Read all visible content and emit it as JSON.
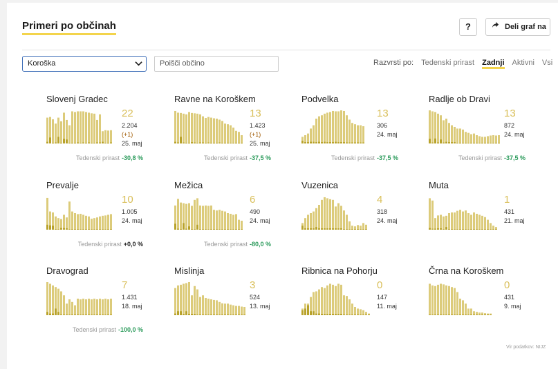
{
  "header": {
    "title": "Primeri po občinah",
    "help_label": "?",
    "share_label": "Deli graf na"
  },
  "filters": {
    "region_selected": "Koroška",
    "search_placeholder": "Poišči občino",
    "sort_label": "Razvrsti po:",
    "sort_options": [
      "Tedenski prirast",
      "Zadnji",
      "Aktivni",
      "Vsi"
    ],
    "sort_active": "Zadnji"
  },
  "growth_label": "Tedenski prirast",
  "colors": {
    "accent": "#f3d44c",
    "bar": "#dccb7a",
    "bar_dark": "#b8a22a",
    "green": "#2a9a5a"
  },
  "municipalities": [
    {
      "name": "Slovenj Gradec",
      "new": "22",
      "total": "2.204",
      "delta": "(+1)",
      "date": "25. maj",
      "growth": "-30,8 %",
      "growth_color": "green",
      "bars": [
        0.78,
        0.8,
        0.73,
        0.6,
        0.78,
        0.67,
        0.93,
        0.71,
        0.55,
        0.97,
        0.95,
        0.97,
        0.97,
        0.97,
        0.95,
        0.93,
        0.91,
        0.9,
        0.71,
        0.88,
        0.37,
        0.4,
        0.39,
        0.4
      ],
      "dark": [
        0.05,
        0.18,
        0.02,
        0.03,
        0.2,
        0.02,
        0.14,
        0.12,
        0.02,
        0.02,
        0.02,
        0.03,
        0.02,
        0.03,
        0.02,
        0.03,
        0.02,
        0.02,
        0.03,
        0.03,
        0.05,
        0.02,
        0.02,
        0.03
      ]
    },
    {
      "name": "Ravne na Koroškem",
      "new": "13",
      "total": "1.423",
      "delta": "(+1)",
      "date": "25. maj",
      "growth": "-37,5 %",
      "growth_color": "green",
      "bars": [
        0.98,
        0.93,
        0.92,
        0.9,
        0.88,
        0.95,
        0.92,
        0.91,
        0.9,
        0.88,
        0.82,
        0.77,
        0.8,
        0.78,
        0.76,
        0.75,
        0.72,
        0.68,
        0.6,
        0.58,
        0.55,
        0.48,
        0.38,
        0.35,
        0.25
      ],
      "dark": [
        0.05,
        0.03,
        0.2,
        0.03,
        0.02,
        0.02,
        0.04,
        0.03,
        0.02,
        0.03,
        0.03,
        0.02,
        0.03,
        0.02,
        0.02,
        0.02,
        0.03,
        0.02,
        0.02,
        0.02,
        0.02,
        0.02,
        0.02,
        0.02,
        0.02
      ]
    },
    {
      "name": "Podvelka",
      "new": "13",
      "total": "306",
      "delta": "",
      "date": "24. maj",
      "growth": "-37,5 %",
      "growth_color": "green",
      "bars": [
        0.2,
        0.25,
        0.3,
        0.45,
        0.55,
        0.75,
        0.82,
        0.85,
        0.9,
        0.93,
        0.95,
        0.98,
        0.97,
        0.97,
        1.0,
        0.98,
        0.85,
        0.72,
        0.62,
        0.58,
        0.55,
        0.55,
        0.52
      ],
      "dark": [
        0.08,
        0.04,
        0.04,
        0.05,
        0.05,
        0.04,
        0.05,
        0.04,
        0.05,
        0.04,
        0.04,
        0.04,
        0.05,
        0.04,
        0.04,
        0.04,
        0.03,
        0.03,
        0.03,
        0.03,
        0.03,
        0.03,
        0.03
      ]
    },
    {
      "name": "Radlje ob Dravi",
      "new": "13",
      "total": "872",
      "delta": "",
      "date": "24. maj",
      "growth": "-37,5 %",
      "growth_color": "green",
      "bars": [
        1.0,
        0.97,
        0.95,
        0.9,
        0.85,
        0.7,
        0.75,
        0.62,
        0.55,
        0.5,
        0.45,
        0.45,
        0.42,
        0.35,
        0.32,
        0.28,
        0.3,
        0.25,
        0.22,
        0.2,
        0.2,
        0.22,
        0.24,
        0.25,
        0.24,
        0.25,
        0.27
      ],
      "dark": [
        0.14,
        0.03,
        0.15,
        0.03,
        0.12,
        0.03,
        0.05,
        0.04,
        0.04,
        0.04,
        0.02,
        0.02,
        0.02,
        0.02,
        0.02,
        0.02,
        0.02,
        0.02,
        0.02,
        0.02,
        0.02,
        0.02,
        0.02,
        0.02,
        0.02,
        0.02,
        0.02
      ]
    },
    {
      "name": "Prevalje",
      "new": "10",
      "total": "1.005",
      "delta": "",
      "date": "24. maj",
      "growth": "+0,0 %",
      "growth_color": "black",
      "bars": [
        0.96,
        0.55,
        0.52,
        0.4,
        0.35,
        0.32,
        0.45,
        0.37,
        0.85,
        0.55,
        0.5,
        0.47,
        0.48,
        0.45,
        0.42,
        0.4,
        0.33,
        0.35,
        0.37,
        0.4,
        0.42,
        0.43,
        0.45,
        0.47
      ],
      "dark": [
        0.15,
        0.13,
        0.12,
        0.02,
        0.02,
        0.05,
        0.05,
        0.04,
        0.02,
        0.02,
        0.02,
        0.02,
        0.02,
        0.02,
        0.02,
        0.02,
        0.02,
        0.02,
        0.02,
        0.02,
        0.02,
        0.02,
        0.02,
        0.02
      ]
    },
    {
      "name": "Mežica",
      "new": "6",
      "total": "490",
      "delta": "",
      "date": "24. maj",
      "growth": "-80,0 %",
      "growth_color": "green",
      "bars": [
        0.73,
        0.93,
        0.82,
        0.8,
        0.78,
        0.8,
        0.72,
        0.9,
        0.95,
        0.73,
        0.72,
        0.73,
        0.72,
        0.73,
        0.6,
        0.58,
        0.6,
        0.57,
        0.55,
        0.5,
        0.48,
        0.45,
        0.47,
        0.3,
        0.27
      ],
      "dark": [
        0.18,
        0.03,
        0.02,
        0.2,
        0.03,
        0.1,
        0.02,
        0.02,
        0.15,
        0.02,
        0.02,
        0.02,
        0.02,
        0.02,
        0.02,
        0.02,
        0.02,
        0.02,
        0.02,
        0.02,
        0.02,
        0.02,
        0.02,
        0.02,
        0.02
      ]
    },
    {
      "name": "Vuzenica",
      "new": "4",
      "total": "318",
      "delta": "",
      "date": "24. maj",
      "growth": "",
      "growth_color": "green",
      "bars": [
        0.2,
        0.35,
        0.45,
        0.5,
        0.55,
        0.65,
        0.75,
        0.9,
        0.98,
        0.95,
        0.92,
        0.9,
        0.7,
        0.8,
        0.72,
        0.58,
        0.45,
        0.25,
        0.12,
        0.1,
        0.14,
        0.12,
        0.2,
        0.15
      ],
      "dark": [
        0.12,
        0.04,
        0.04,
        0.04,
        0.04,
        0.08,
        0.04,
        0.04,
        0.04,
        0.04,
        0.04,
        0.04,
        0.04,
        0.04,
        0.04,
        0.02,
        0.02,
        0.02,
        0.02,
        0.02,
        0.02,
        0.02,
        0.02,
        0.02
      ]
    },
    {
      "name": "Muta",
      "new": "1",
      "total": "431",
      "delta": "",
      "date": "21. maj",
      "growth": "",
      "growth_color": "green",
      "bars": [
        0.95,
        0.88,
        0.35,
        0.43,
        0.45,
        0.4,
        0.42,
        0.5,
        0.52,
        0.52,
        0.57,
        0.6,
        0.55,
        0.58,
        0.5,
        0.45,
        0.52,
        0.48,
        0.45,
        0.42,
        0.38,
        0.3,
        0.2,
        0.12,
        0.08
      ],
      "dark": [
        0.05,
        0.03,
        0.03,
        0.04,
        0.04,
        0.02,
        0.08,
        0.02,
        0.02,
        0.02,
        0.02,
        0.02,
        0.02,
        0.02,
        0.02,
        0.02,
        0.02,
        0.02,
        0.02,
        0.02,
        0.02,
        0.02,
        0.02,
        0.02,
        0.02
      ]
    },
    {
      "name": "Dravograd",
      "new": "7",
      "total": "1.431",
      "delta": "",
      "date": "18. maj",
      "growth": "-100,0 %",
      "growth_color": "green",
      "bars": [
        1.0,
        0.95,
        0.9,
        0.85,
        0.8,
        0.72,
        0.6,
        0.35,
        0.48,
        0.4,
        0.3,
        0.5,
        0.48,
        0.5,
        0.48,
        0.5,
        0.48,
        0.5,
        0.48,
        0.5,
        0.48,
        0.5,
        0.48,
        0.5
      ],
      "dark": [
        0.1,
        0.05,
        0.05,
        0.2,
        0.1,
        0.02,
        0.02,
        0.02,
        0.02,
        0.02,
        0.02,
        0.02,
        0.02,
        0.02,
        0.02,
        0.02,
        0.02,
        0.02,
        0.02,
        0.02,
        0.02,
        0.02,
        0.02,
        0.02
      ]
    },
    {
      "name": "Mislinja",
      "new": "3",
      "total": "524",
      "delta": "",
      "date": "13. maj",
      "growth": "",
      "growth_color": "green",
      "bars": [
        0.82,
        0.9,
        0.92,
        0.95,
        0.97,
        1.0,
        0.6,
        0.88,
        0.78,
        0.55,
        0.6,
        0.52,
        0.5,
        0.48,
        0.46,
        0.45,
        0.4,
        0.36,
        0.35,
        0.35,
        0.32,
        0.3,
        0.28,
        0.28,
        0.26,
        0.25
      ],
      "dark": [
        0.05,
        0.12,
        0.12,
        0.04,
        0.12,
        0.04,
        0.04,
        0.04,
        0.02,
        0.02,
        0.02,
        0.02,
        0.02,
        0.02,
        0.02,
        0.02,
        0.02,
        0.02,
        0.02,
        0.02,
        0.02,
        0.02,
        0.02,
        0.02,
        0.02,
        0.02
      ]
    },
    {
      "name": "Ribnica na Pohorju",
      "new": "0",
      "total": "147",
      "delta": "",
      "date": "11. maj",
      "growth": "",
      "growth_color": "green",
      "bars": [
        0.2,
        0.35,
        0.35,
        0.55,
        0.7,
        0.72,
        0.78,
        0.85,
        0.82,
        0.9,
        0.95,
        0.92,
        0.88,
        0.95,
        0.92,
        0.6,
        0.58,
        0.48,
        0.35,
        0.25,
        0.2,
        0.18,
        0.15,
        0.1,
        0.05
      ],
      "dark": [
        0.15,
        0.2,
        0.3,
        0.12,
        0.12,
        0.05,
        0.05,
        0.04,
        0.04,
        0.04,
        0.04,
        0.04,
        0.04,
        0.04,
        0.04,
        0.02,
        0.02,
        0.02,
        0.02,
        0.02,
        0.02,
        0.02,
        0.02,
        0.02,
        0.02
      ]
    },
    {
      "name": "Črna na Koroškem",
      "new": "0",
      "total": "431",
      "delta": "",
      "date": "9. maj",
      "growth": "",
      "growth_color": "green",
      "bars": [
        0.95,
        0.9,
        0.88,
        0.92,
        0.95,
        0.93,
        0.9,
        0.88,
        0.85,
        0.82,
        0.7,
        0.5,
        0.45,
        0.35,
        0.2,
        0.2,
        0.12,
        0.1,
        0.08,
        0.08,
        0.06,
        0.05,
        0.05
      ],
      "dark": [
        0.02,
        0.02,
        0.02,
        0.02,
        0.02,
        0.02,
        0.02,
        0.02,
        0.02,
        0.02,
        0.02,
        0.02,
        0.02,
        0.02,
        0.02,
        0.02,
        0.02,
        0.02,
        0.02,
        0.02,
        0.02,
        0.02,
        0.02
      ]
    }
  ],
  "source": "Vir podatkov: NIJZ"
}
